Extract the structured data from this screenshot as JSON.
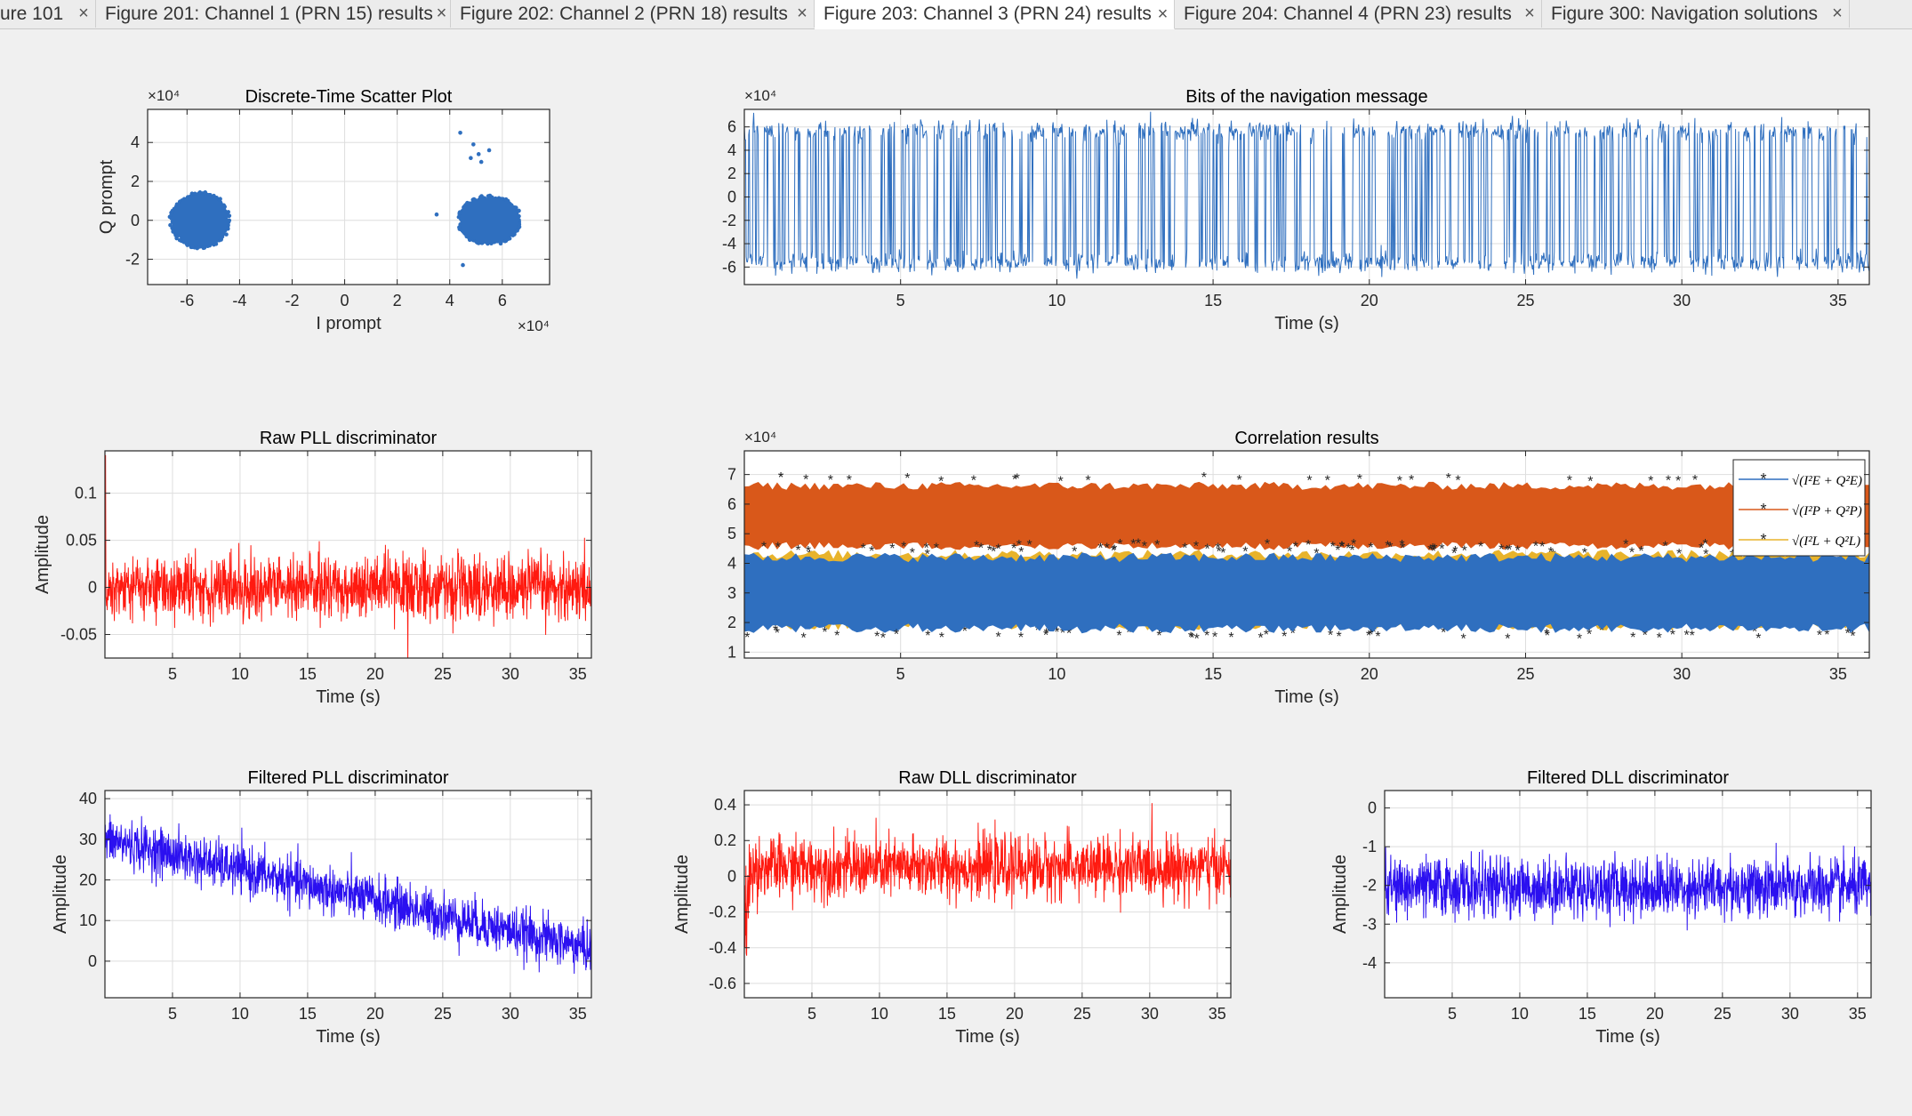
{
  "tabs": [
    {
      "label": "ure 101",
      "active": false
    },
    {
      "label": "Figure 201: Channel 1 (PRN 15) results",
      "active": false
    },
    {
      "label": "Figure 202: Channel 2 (PRN 18) results",
      "active": false
    },
    {
      "label": "Figure 203: Channel 3 (PRN 24) results",
      "active": true
    },
    {
      "label": "Figure 204: Channel 4 (PRN 23) results",
      "active": false
    },
    {
      "label": "Figure 300: Navigation solutions",
      "active": false
    }
  ],
  "close_glyph": "×",
  "colors": {
    "blue": "#2f6fbf",
    "orange": "#d9581a",
    "yellow": "#e8b32b",
    "red": "#ff1a10",
    "violet": "#2b10f0"
  },
  "plots": [
    {
      "id": "scatter",
      "chart_data": {
        "type": "scatter",
        "title": "Discrete-Time Scatter Plot",
        "xlabel": "I prompt",
        "ylabel": "Q prompt",
        "xlim": [
          -7.5,
          7.8
        ],
        "ylim": [
          -3.3,
          5.7
        ],
        "xticks": [
          -6,
          -4,
          -2,
          0,
          2,
          4,
          6
        ],
        "yticks": [
          -2,
          0,
          2,
          4
        ],
        "xexp": "×10⁴",
        "yexp": "×10⁴",
        "clusters": [
          {
            "cx": -5.5,
            "cy": 0.0,
            "rx": 1.9,
            "ry": 2.4
          },
          {
            "cx": 5.5,
            "cy": 0.0,
            "rx": 2.0,
            "ry": 2.1
          }
        ],
        "outliers": [
          [
            4.4,
            4.5
          ],
          [
            4.9,
            3.9
          ],
          [
            5.1,
            3.4
          ],
          [
            5.5,
            3.6
          ],
          [
            5.2,
            3.0
          ],
          [
            4.8,
            3.2
          ],
          [
            3.5,
            0.3
          ],
          [
            4.5,
            -2.3
          ]
        ],
        "color": "#2f6fbf"
      }
    },
    {
      "id": "bits",
      "chart_data": {
        "type": "line",
        "title": "Bits of the navigation message",
        "xlabel": "Time (s)",
        "ylabel": "",
        "xlim": [
          0,
          36
        ],
        "ylim": [
          -7.5,
          7.5
        ],
        "xticks": [
          5,
          10,
          15,
          20,
          25,
          30,
          35
        ],
        "yticks": [
          -6,
          -4,
          -2,
          0,
          2,
          4,
          6
        ],
        "yexp": "×10⁴",
        "levels": [
          5.6,
          -5.6
        ],
        "color": "#2f6fbf"
      }
    },
    {
      "id": "rawpll",
      "chart_data": {
        "type": "line",
        "title": "Raw PLL discriminator",
        "xlabel": "Time (s)",
        "ylabel": "Amplitude",
        "xlim": [
          0,
          36
        ],
        "ylim": [
          -0.075,
          0.145
        ],
        "xticks": [
          5,
          10,
          15,
          20,
          25,
          30,
          35
        ],
        "yticks": [
          -0.05,
          0,
          0.05,
          0.1
        ],
        "ytick_labels": [
          "-0.05",
          "0",
          "0.05",
          "0.1"
        ],
        "mean": 0.0,
        "halfwidth": 0.04,
        "color": "#ff1a10"
      }
    },
    {
      "id": "corr",
      "chart_data": {
        "type": "line",
        "title": "Correlation results",
        "xlabel": "Time (s)",
        "ylabel": "",
        "xlim": [
          0,
          36
        ],
        "ylim": [
          0.8,
          7.8
        ],
        "xticks": [
          5,
          10,
          15,
          20,
          25,
          30,
          35
        ],
        "yticks": [
          1,
          2,
          3,
          4,
          5,
          6,
          7
        ],
        "yexp": "×10⁴",
        "series": [
          {
            "name": "√(I²E + Q²E)",
            "center": 3.0,
            "halfwidth": 1.3
          },
          {
            "name": "√(I²P + Q²P)",
            "center": 5.6,
            "halfwidth": 1.1
          },
          {
            "name": "√(I²L + Q²L)",
            "center": 3.1,
            "halfwidth": 1.3
          }
        ],
        "legend": "top-right"
      }
    },
    {
      "id": "filtpll",
      "chart_data": {
        "type": "line",
        "title": "Filtered PLL discriminator",
        "xlabel": "Time (s)",
        "ylabel": "Amplitude",
        "xlim": [
          0,
          36
        ],
        "ylim": [
          -9,
          42
        ],
        "xticks": [
          5,
          10,
          15,
          20,
          25,
          30,
          35
        ],
        "yticks": [
          0,
          10,
          20,
          30,
          40
        ],
        "start": 30,
        "end": 3,
        "halfwidth": 7,
        "color": "#2b10f0"
      }
    },
    {
      "id": "rawdll",
      "chart_data": {
        "type": "line",
        "title": "Raw DLL discriminator",
        "xlabel": "Time (s)",
        "ylabel": "Amplitude",
        "xlim": [
          0,
          36
        ],
        "ylim": [
          -0.68,
          0.48
        ],
        "xticks": [
          5,
          10,
          15,
          20,
          25,
          30,
          35
        ],
        "yticks": [
          -0.6,
          -0.4,
          -0.2,
          0,
          0.2,
          0.4
        ],
        "ytick_labels": [
          "-0.6",
          "-0.4",
          "-0.2",
          "0",
          "0.2",
          "0.4"
        ],
        "mean": 0.05,
        "halfwidth": 0.2,
        "color": "#ff1a10"
      }
    },
    {
      "id": "filtdll",
      "chart_data": {
        "type": "line",
        "title": "Filtered DLL discriminator",
        "xlabel": "Time (s)",
        "ylabel": "Amplitude",
        "xlim": [
          0,
          36
        ],
        "ylim": [
          -4.9,
          0.45
        ],
        "xticks": [
          5,
          10,
          15,
          20,
          25,
          30,
          35
        ],
        "yticks": [
          -4,
          -3,
          -2,
          -1,
          0
        ],
        "mean": -2.05,
        "halfwidth": 0.9,
        "color": "#2b10f0"
      }
    }
  ]
}
